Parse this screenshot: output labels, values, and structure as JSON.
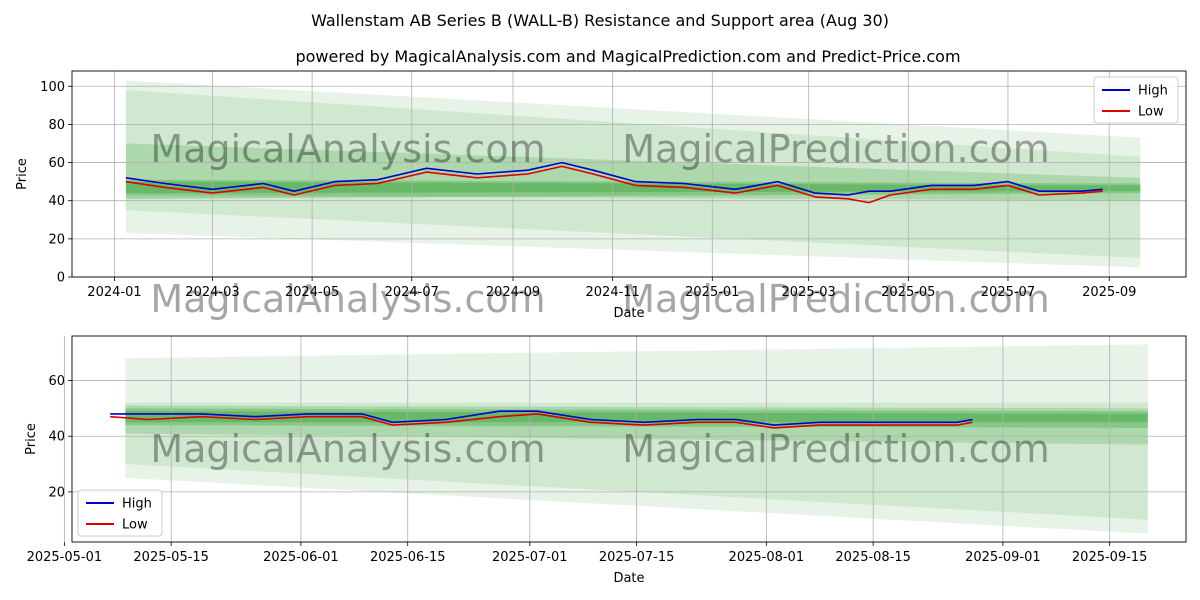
{
  "title": "Wallenstam AB Series B (WALL-B) Resistance and Support area (Aug 30)",
  "subtitle": "powered by MagicalAnalysis.com and MagicalPrediction.com and Predict-Price.com",
  "watermarks": [
    "MagicalAnalysis.com",
    "MagicalPrediction.com"
  ],
  "colors": {
    "high": "#0000cc",
    "low": "#dd0000",
    "band": "#2e9e2e"
  },
  "chart_data": [
    {
      "type": "line",
      "xlabel": "Date",
      "ylabel": "Price",
      "xlim": [
        "2023-12-06",
        "2025-10-18"
      ],
      "ylim": [
        0,
        108
      ],
      "yticks": [
        0,
        20,
        40,
        60,
        80,
        100
      ],
      "xticks": [
        "2024-01",
        "2024-03",
        "2024-05",
        "2024-07",
        "2024-09",
        "2024-11",
        "2025-01",
        "2025-03",
        "2025-05",
        "2025-07",
        "2025-09"
      ],
      "legend": [
        "High",
        "Low"
      ],
      "legend_loc": "top-right",
      "band_x": [
        "2024-01-08",
        "2025-09-20"
      ],
      "bands": [
        {
          "start": [
            23,
            103
          ],
          "end": [
            5,
            73
          ]
        },
        {
          "start": [
            35,
            98
          ],
          "end": [
            10,
            63
          ]
        },
        {
          "start": [
            43,
            70
          ],
          "end": [
            40,
            52
          ]
        },
        {
          "start": [
            41,
            51
          ],
          "end": [
            44,
            49
          ]
        },
        {
          "start": [
            44,
            50
          ],
          "end": [
            45,
            48
          ]
        }
      ],
      "series": [
        {
          "name": "High",
          "x": [
            "2024-01-08",
            "2024-02-01",
            "2024-03-01",
            "2024-04-01",
            "2024-04-20",
            "2024-05-15",
            "2024-06-10",
            "2024-07-10",
            "2024-08-10",
            "2024-09-10",
            "2024-10-01",
            "2024-10-20",
            "2024-11-15",
            "2024-12-15",
            "2025-01-15",
            "2025-02-10",
            "2025-03-05",
            "2025-03-25",
            "2025-04-07",
            "2025-04-20",
            "2025-05-15",
            "2025-06-10",
            "2025-07-01",
            "2025-07-20",
            "2025-08-15",
            "2025-08-28"
          ],
          "values": [
            52,
            49,
            46,
            49,
            45,
            50,
            51,
            57,
            54,
            56,
            60,
            56,
            50,
            49,
            46,
            50,
            44,
            43,
            45,
            45,
            48,
            48,
            50,
            45,
            45,
            46
          ]
        },
        {
          "name": "Low",
          "x": [
            "2024-01-08",
            "2024-02-01",
            "2024-03-01",
            "2024-04-01",
            "2024-04-20",
            "2024-05-15",
            "2024-06-10",
            "2024-07-10",
            "2024-08-10",
            "2024-09-10",
            "2024-10-01",
            "2024-10-20",
            "2024-11-15",
            "2024-12-15",
            "2025-01-15",
            "2025-02-10",
            "2025-03-05",
            "2025-03-25",
            "2025-04-07",
            "2025-04-20",
            "2025-05-15",
            "2025-06-10",
            "2025-07-01",
            "2025-07-20",
            "2025-08-15",
            "2025-08-28"
          ],
          "values": [
            50,
            47,
            44,
            47,
            43,
            48,
            49,
            55,
            52,
            54,
            58,
            54,
            48,
            47,
            44,
            48,
            42,
            41,
            39,
            43,
            46,
            46,
            48,
            43,
            44,
            45
          ]
        }
      ]
    },
    {
      "type": "line",
      "xlabel": "Date",
      "ylabel": "Price",
      "xlim": [
        "2025-05-02",
        "2025-09-25"
      ],
      "ylim": [
        2,
        76
      ],
      "yticks": [
        20,
        40,
        60
      ],
      "xticks": [
        "2025-05-01",
        "2025-05-15",
        "2025-06-01",
        "2025-06-15",
        "2025-07-01",
        "2025-07-15",
        "2025-08-01",
        "2025-08-15",
        "2025-09-01",
        "2025-09-15"
      ],
      "legend": [
        "High",
        "Low"
      ],
      "legend_loc": "bottom-left",
      "band_x": [
        "2025-05-09",
        "2025-09-20"
      ],
      "bands": [
        {
          "start": [
            25,
            68
          ],
          "end": [
            5,
            73
          ]
        },
        {
          "start": [
            30,
            52
          ],
          "end": [
            10,
            52
          ]
        },
        {
          "start": [
            41,
            51
          ],
          "end": [
            37,
            50
          ]
        },
        {
          "start": [
            44,
            50
          ],
          "end": [
            43,
            49
          ]
        },
        {
          "start": [
            45,
            49
          ],
          "end": [
            45,
            48
          ]
        }
      ],
      "series": [
        {
          "name": "High",
          "x": [
            "2025-05-07",
            "2025-05-12",
            "2025-05-19",
            "2025-05-26",
            "2025-06-02",
            "2025-06-09",
            "2025-06-13",
            "2025-06-20",
            "2025-06-27",
            "2025-07-02",
            "2025-07-09",
            "2025-07-16",
            "2025-07-23",
            "2025-07-28",
            "2025-08-02",
            "2025-08-08",
            "2025-08-14",
            "2025-08-20",
            "2025-08-26",
            "2025-08-28"
          ],
          "values": [
            48,
            48,
            48,
            47,
            48,
            48,
            45,
            46,
            49,
            49,
            46,
            45,
            46,
            46,
            44,
            45,
            45,
            45,
            45,
            46
          ]
        },
        {
          "name": "Low",
          "x": [
            "2025-05-07",
            "2025-05-12",
            "2025-05-19",
            "2025-05-26",
            "2025-06-02",
            "2025-06-09",
            "2025-06-13",
            "2025-06-20",
            "2025-06-27",
            "2025-07-02",
            "2025-07-09",
            "2025-07-16",
            "2025-07-23",
            "2025-07-28",
            "2025-08-02",
            "2025-08-08",
            "2025-08-14",
            "2025-08-20",
            "2025-08-26",
            "2025-08-28"
          ],
          "values": [
            47,
            46,
            47,
            46,
            47,
            47,
            44,
            45,
            47,
            48,
            45,
            44,
            45,
            45,
            43,
            44,
            44,
            44,
            44,
            45
          ]
        }
      ]
    }
  ]
}
